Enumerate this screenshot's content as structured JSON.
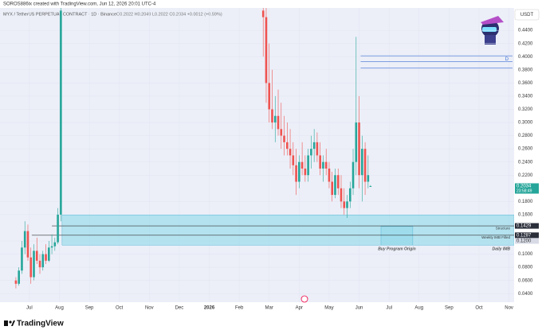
{
  "chart_data": {
    "type": "candlestick",
    "caption": "SOROS886ix created with TradingView.com, Jun 12, 2026 20:01 UTC-4",
    "title": "MYX / TetherUS PERPETUAL CONTRACT · 1D · Binance",
    "ohlc_text": "O0.2022 H0.2049 L0.2022 C0.2034 +0.0012 (+0.59%)",
    "currency": "USDT",
    "footer": "TradingView",
    "up_color": "#26a69a",
    "down_color": "#ef5350",
    "grid": true,
    "x": [
      -0.45,
      -0.35,
      -0.25,
      -0.15,
      -0.05,
      0.05,
      0.15,
      0.25,
      0.35,
      0.45,
      0.55,
      0.65,
      0.75,
      0.85,
      0.95,
      1.05,
      7.8,
      7.9,
      8.0,
      8.1,
      8.2,
      8.3,
      8.4,
      8.5,
      8.6,
      8.7,
      8.8,
      8.9,
      9.0,
      9.1,
      9.2,
      9.3,
      9.4,
      9.5,
      9.6,
      9.7,
      9.8,
      9.9,
      10.0,
      10.1,
      10.2,
      10.3,
      10.4,
      10.5,
      10.6,
      10.7,
      10.8,
      10.9,
      11.0,
      11.1,
      11.2,
      11.3,
      11.38
    ],
    "open": [
      0.06,
      0.055,
      0.075,
      0.11,
      0.135,
      0.095,
      0.065,
      0.105,
      0.09,
      0.08,
      0.1,
      0.09,
      0.11,
      0.112,
      0.118,
      0.16,
      0.47,
      0.46,
      0.36,
      0.32,
      0.3,
      0.31,
      0.29,
      0.28,
      0.27,
      0.26,
      0.25,
      0.235,
      0.21,
      0.24,
      0.23,
      0.22,
      0.25,
      0.26,
      0.27,
      0.25,
      0.23,
      0.24,
      0.23,
      0.21,
      0.19,
      0.22,
      0.2,
      0.18,
      0.17,
      0.18,
      0.2,
      0.24,
      0.3,
      0.22,
      0.26,
      0.21,
      0.2022
    ],
    "high": [
      0.065,
      0.08,
      0.12,
      0.15,
      0.145,
      0.11,
      0.115,
      0.125,
      0.1,
      0.105,
      0.115,
      0.12,
      0.13,
      0.125,
      0.17,
      0.48,
      0.49,
      0.48,
      0.42,
      0.38,
      0.34,
      0.35,
      0.33,
      0.31,
      0.3,
      0.29,
      0.27,
      0.26,
      0.25,
      0.27,
      0.25,
      0.26,
      0.28,
      0.29,
      0.285,
      0.27,
      0.25,
      0.26,
      0.24,
      0.225,
      0.23,
      0.23,
      0.22,
      0.2,
      0.19,
      0.21,
      0.26,
      0.43,
      0.34,
      0.28,
      0.27,
      0.25,
      0.2049
    ],
    "low": [
      0.048,
      0.052,
      0.07,
      0.1,
      0.09,
      0.055,
      0.06,
      0.085,
      0.07,
      0.075,
      0.085,
      0.088,
      0.1,
      0.105,
      0.115,
      0.15,
      0.4,
      0.33,
      0.3,
      0.29,
      0.27,
      0.28,
      0.26,
      0.25,
      0.25,
      0.23,
      0.22,
      0.19,
      0.2,
      0.22,
      0.21,
      0.21,
      0.23,
      0.24,
      0.24,
      0.22,
      0.21,
      0.22,
      0.2,
      0.18,
      0.185,
      0.19,
      0.17,
      0.16,
      0.155,
      0.17,
      0.19,
      0.22,
      0.2,
      0.18,
      0.19,
      0.2,
      0.2022
    ],
    "close": [
      0.055,
      0.075,
      0.11,
      0.135,
      0.095,
      0.065,
      0.105,
      0.09,
      0.08,
      0.1,
      0.09,
      0.11,
      0.112,
      0.118,
      0.16,
      0.47,
      0.46,
      0.36,
      0.32,
      0.3,
      0.31,
      0.29,
      0.28,
      0.27,
      0.26,
      0.25,
      0.235,
      0.21,
      0.24,
      0.23,
      0.22,
      0.25,
      0.26,
      0.27,
      0.25,
      0.23,
      0.24,
      0.23,
      0.21,
      0.19,
      0.22,
      0.2,
      0.18,
      0.17,
      0.18,
      0.2,
      0.24,
      0.3,
      0.22,
      0.26,
      0.21,
      0.22,
      0.2034
    ],
    "xlim": [
      -0.98,
      16.17
    ],
    "xticks": [
      {
        "value": 0,
        "label": "Jul"
      },
      {
        "value": 1,
        "label": "Aug"
      },
      {
        "value": 2,
        "label": "Sep"
      },
      {
        "value": 3,
        "label": "Oct"
      },
      {
        "value": 4,
        "label": "Nov"
      },
      {
        "value": 5,
        "label": "Dec"
      },
      {
        "value": 6,
        "label": "2026"
      },
      {
        "value": 7,
        "label": "Feb"
      },
      {
        "value": 8,
        "label": "Mar"
      },
      {
        "value": 9,
        "label": "Apr"
      },
      {
        "value": 10,
        "label": "May"
      },
      {
        "value": 11,
        "label": "Jun"
      },
      {
        "value": 12,
        "label": "Jul"
      },
      {
        "value": 13,
        "label": "Aug"
      },
      {
        "value": 14,
        "label": "Sep"
      },
      {
        "value": 15,
        "label": "Oct"
      },
      {
        "value": 16,
        "label": "Nov"
      }
    ],
    "ylim": [
      0.027,
      0.474
    ],
    "yticks": [
      {
        "value": 0.04,
        "label": "0.0400"
      },
      {
        "value": 0.06,
        "label": "0.0600"
      },
      {
        "value": 0.08,
        "label": "0.0800"
      },
      {
        "value": 0.1,
        "label": "0.1000"
      },
      {
        "value": 0.12,
        "label": "0.1200"
      },
      {
        "value": 0.16,
        "label": "0.1600"
      },
      {
        "value": 0.18,
        "label": "0.1800"
      },
      {
        "value": 0.22,
        "label": "0.2200"
      },
      {
        "value": 0.24,
        "label": "0.2400"
      },
      {
        "value": 0.26,
        "label": "0.2600"
      },
      {
        "value": 0.28,
        "label": "0.2800"
      },
      {
        "value": 0.3,
        "label": "0.3000"
      },
      {
        "value": 0.32,
        "label": "0.3200"
      },
      {
        "value": 0.34,
        "label": "0.3400"
      },
      {
        "value": 0.36,
        "label": "0.3600"
      },
      {
        "value": 0.38,
        "label": "0.3800"
      },
      {
        "value": 0.4,
        "label": "0.4000"
      },
      {
        "value": 0.42,
        "label": "0.4200"
      },
      {
        "value": 0.44,
        "label": "0.4400"
      }
    ],
    "zones": [
      {
        "label": "Daily IMB",
        "x": [
          1.09,
          16.17
        ],
        "y": [
          0.1137,
          0.1596
        ],
        "color": "#8fd8ea"
      },
      {
        "label": "Buy Program Origin",
        "x": [
          11.73,
          12.79
        ],
        "y": [
          0.1137,
          0.142
        ],
        "color": "#8fd8ea"
      }
    ],
    "levels": [
      {
        "label": "Structure",
        "value": 0.1429,
        "from": 0.75,
        "color": "#333333"
      },
      {
        "label": "Weekly IMB Filled",
        "value": 0.1287,
        "from": 0.08,
        "color": "#333333"
      }
    ],
    "d_levels": {
      "label": "D",
      "values": [
        0.4013,
        0.3925,
        0.383
      ],
      "from": 11.05,
      "color": "#3d6fd6"
    },
    "price_labels": [
      {
        "value": 0.2034,
        "label": "0.2034",
        "sub": "23:58:49",
        "color": "#26a69a"
      },
      {
        "value": 0.1429,
        "label": "0.1429",
        "color": "#2a2e39"
      },
      {
        "value": 0.1287,
        "label": "0.1287",
        "color": "#2a2e39"
      },
      {
        "value": 0.12,
        "label": "0.1200",
        "color": "#d8dbe6"
      }
    ]
  }
}
